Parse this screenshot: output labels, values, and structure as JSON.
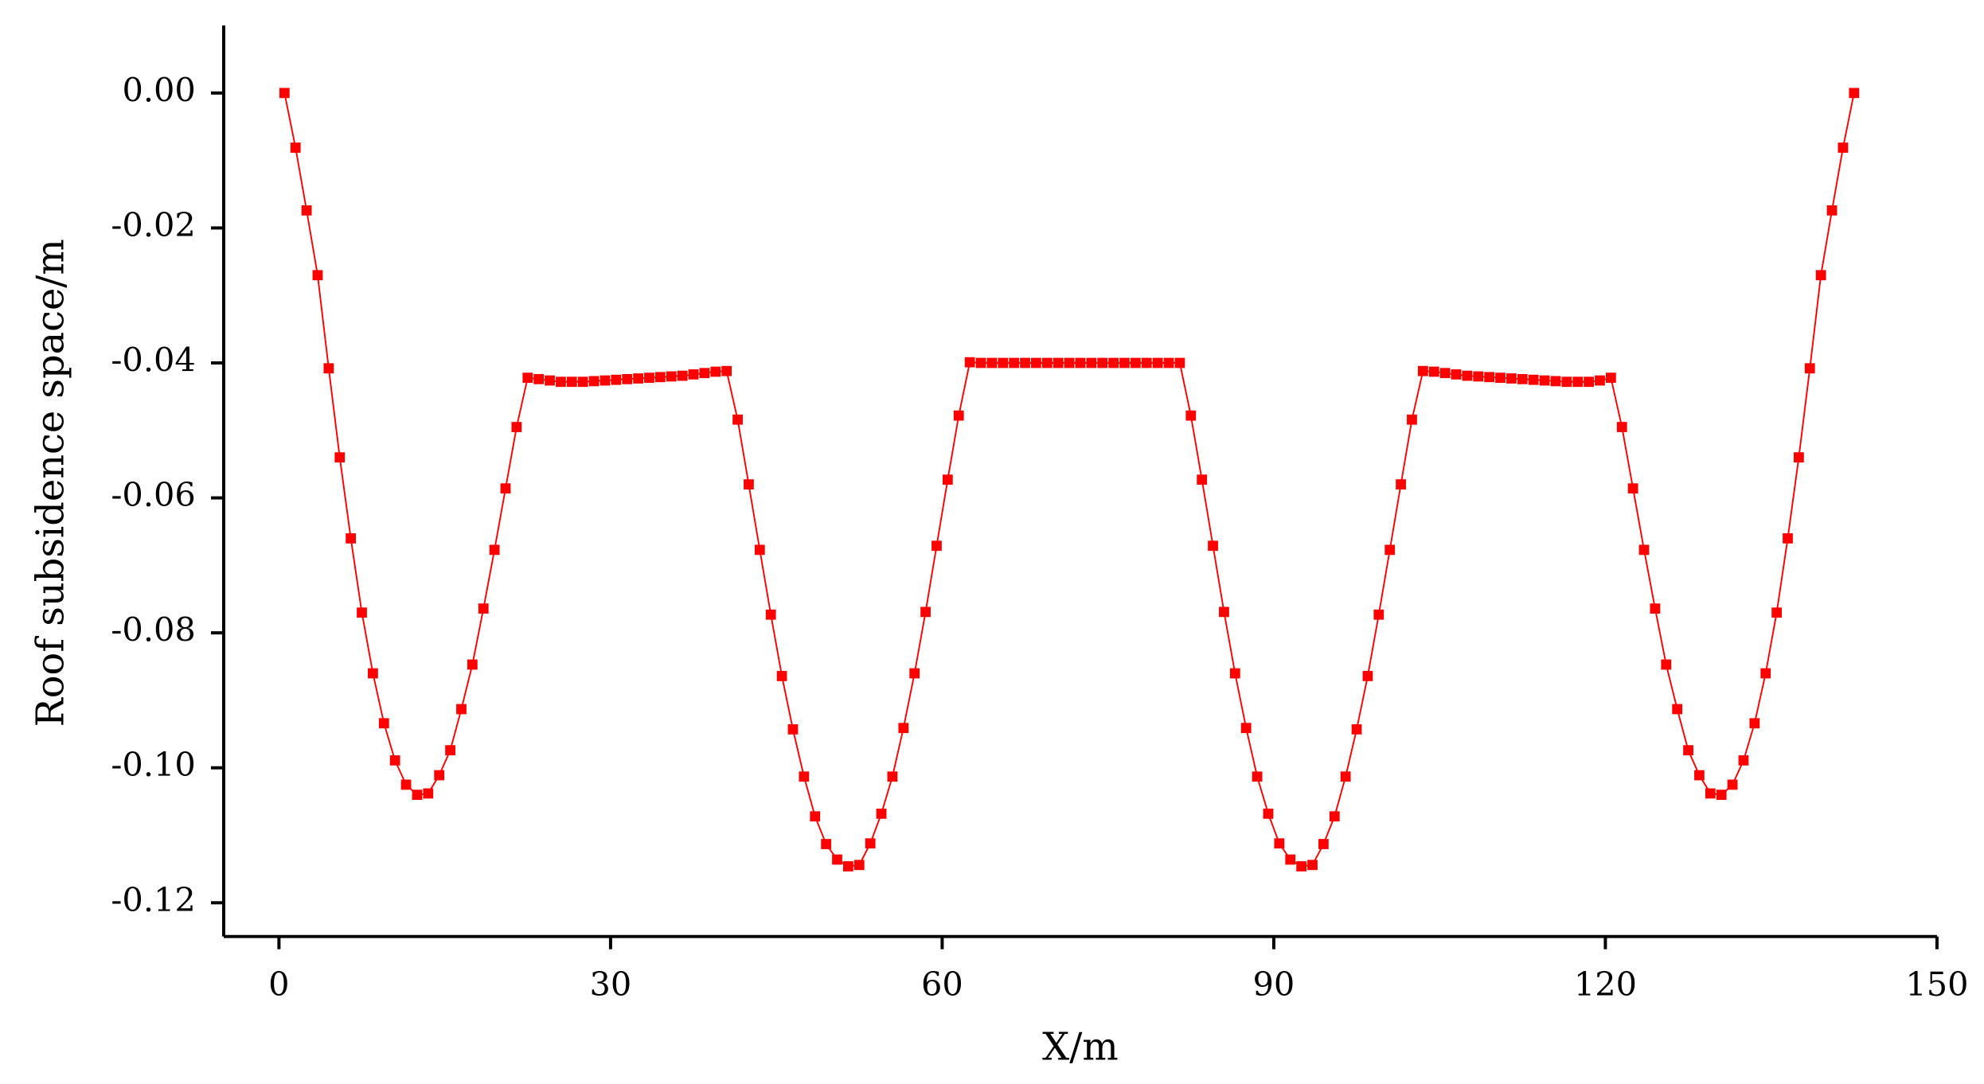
{
  "chart_data": {
    "type": "line",
    "x_label": "X/m",
    "y_label": "Roof subsidence space/m",
    "xlim": [
      -5,
      150
    ],
    "xticks": [
      0,
      30,
      60,
      90,
      120,
      150
    ],
    "ylim": [
      -0.125,
      0.01
    ],
    "yticks": [
      {
        "value": 0,
        "label": "0.00"
      },
      {
        "value": -0.02,
        "label": "-0.02"
      },
      {
        "value": -0.04,
        "label": "-0.04"
      },
      {
        "value": -0.06,
        "label": "-0.06"
      },
      {
        "value": -0.08,
        "label": "-0.08"
      },
      {
        "value": -0.1,
        "label": "-0.10"
      },
      {
        "value": -0.12,
        "label": "-0.12"
      }
    ],
    "x": [
      0.5,
      1.5,
      2.5,
      3.5,
      4.5,
      5.5,
      6.5,
      7.5,
      8.5,
      9.5,
      10.5,
      11.5,
      12.5,
      13.5,
      14.5,
      15.5,
      16.5,
      17.5,
      18.5,
      19.5,
      20.5,
      21.5,
      22.5,
      23.5,
      24.5,
      25.5,
      26.5,
      27.5,
      28.5,
      29.5,
      30.5,
      31.5,
      32.5,
      33.5,
      34.5,
      35.5,
      36.5,
      37.5,
      38.5,
      39.5,
      40.5,
      41.5,
      42.5,
      43.5,
      44.5,
      45.5,
      46.5,
      47.5,
      48.5,
      49.5,
      50.5,
      51.5,
      52.5,
      53.5,
      54.5,
      55.5,
      56.5,
      57.5,
      58.5,
      59.5,
      60.5,
      61.5,
      62.5,
      63.5,
      64.5,
      65.5,
      66.5,
      67.5,
      68.5,
      69.5,
      70.5,
      71.5,
      72.5,
      73.5,
      74.5,
      75.5,
      76.5,
      77.5,
      78.5,
      79.5,
      80.5,
      81.5,
      82.5,
      83.5,
      84.5,
      85.5,
      86.5,
      87.5,
      88.5,
      89.5,
      90.5,
      91.5,
      92.5,
      93.5,
      94.5,
      95.5,
      96.5,
      97.5,
      98.5,
      99.5,
      100.5,
      101.5,
      102.5,
      103.5,
      104.5,
      105.5,
      106.5,
      107.5,
      108.5,
      109.5,
      110.5,
      111.5,
      112.5,
      113.5,
      114.5,
      115.5,
      116.5,
      117.5,
      118.5,
      119.5,
      120.5,
      121.5,
      122.5,
      123.5,
      124.5,
      125.5,
      126.5,
      127.5,
      128.5,
      129.5,
      130.5,
      131.5,
      132.5,
      133.5,
      134.5,
      135.5,
      136.5,
      137.5,
      138.5,
      139.5,
      140.5,
      141.5,
      142.5
    ],
    "series": [
      {
        "color": "#ff0000",
        "values": [
          0,
          -0.0081,
          -0.0174,
          -0.027,
          -0.0408,
          -0.054,
          -0.066,
          -0.077,
          -0.086,
          -0.0934,
          -0.0989,
          -0.1025,
          -0.104,
          -0.1038,
          -0.1011,
          -0.0974,
          -0.0913,
          -0.0847,
          -0.0764,
          -0.0677,
          -0.0586,
          -0.0495,
          -0.0422,
          -0.0424,
          -0.0426,
          -0.0428,
          -0.0428,
          -0.0428,
          -0.0427,
          -0.0426,
          -0.0425,
          -0.0424,
          -0.0423,
          -0.0422,
          -0.0421,
          -0.042,
          -0.0419,
          -0.0417,
          -0.0415,
          -0.0413,
          -0.0412,
          -0.0484,
          -0.058,
          -0.0677,
          -0.0773,
          -0.0864,
          -0.0943,
          -0.1013,
          -0.1072,
          -0.1113,
          -0.1136,
          -0.1146,
          -0.1144,
          -0.1112,
          -0.1068,
          -0.1013,
          -0.0941,
          -0.086,
          -0.0769,
          -0.0671,
          -0.0573,
          -0.0478,
          -0.0399,
          -0.04,
          -0.04,
          -0.04,
          -0.04,
          -0.04,
          -0.04,
          -0.04,
          -0.04,
          -0.04,
          -0.04,
          -0.04,
          -0.04,
          -0.04,
          -0.04,
          -0.04,
          -0.04,
          -0.04,
          -0.04,
          -0.04,
          -0.0478,
          -0.0573,
          -0.0671,
          -0.0769,
          -0.086,
          -0.0941,
          -0.1013,
          -0.1068,
          -0.1112,
          -0.1136,
          -0.1146,
          -0.1144,
          -0.1113,
          -0.1072,
          -0.1013,
          -0.0943,
          -0.0864,
          -0.0773,
          -0.0677,
          -0.058,
          -0.0484,
          -0.0412,
          -0.0413,
          -0.0415,
          -0.0417,
          -0.0419,
          -0.042,
          -0.0421,
          -0.0422,
          -0.0423,
          -0.0424,
          -0.0425,
          -0.0426,
          -0.0427,
          -0.0428,
          -0.0428,
          -0.0428,
          -0.0426,
          -0.0422,
          -0.0495,
          -0.0586,
          -0.0677,
          -0.0764,
          -0.0847,
          -0.0913,
          -0.0974,
          -0.1011,
          -0.1038,
          -0.104,
          -0.1025,
          -0.0989,
          -0.0934,
          -0.086,
          -0.077,
          -0.066,
          -0.054,
          -0.0408,
          -0.027,
          -0.0174,
          -0.0081,
          0
        ]
      }
    ]
  }
}
